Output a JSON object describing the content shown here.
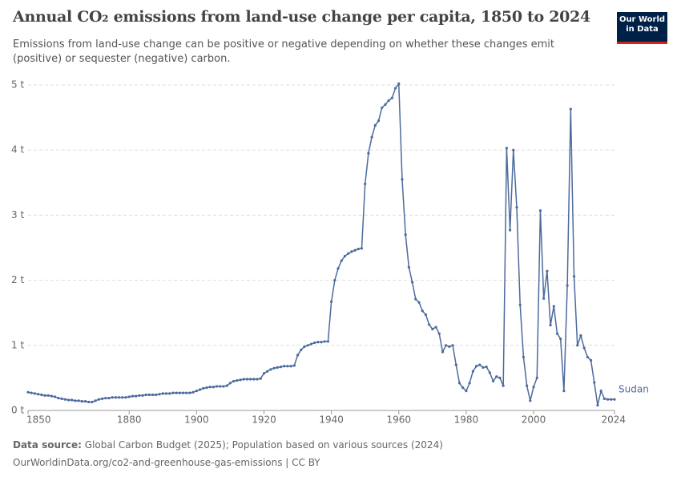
{
  "chart_data": {
    "type": "line",
    "title": "Annual CO₂ emissions from land-use change per capita, 1850 to 2024",
    "subtitle": "Emissions from land-use change can be positive or negative depending on whether these changes emit (positive) or sequester (negative) carbon.",
    "logo": "Our World in Data",
    "source_label": "Data source:",
    "source_text": "Global Carbon Budget (2025); Population based on various sources (2024)",
    "footer": "OurWorldinData.org/co2-and-greenhouse-gas-emissions | CC BY",
    "grid": true,
    "xlim": [
      1850,
      2024
    ],
    "xticks": [
      1850,
      1880,
      1900,
      1920,
      1940,
      1960,
      1980,
      2000,
      2024
    ],
    "ylim": [
      0,
      5
    ],
    "yticks": [
      {
        "value": 0,
        "label": "0 t"
      },
      {
        "value": 1,
        "label": "1 t"
      },
      {
        "value": 2,
        "label": "2 t"
      },
      {
        "value": 3,
        "label": "3 t"
      },
      {
        "value": 4,
        "label": "4 t"
      },
      {
        "value": 5,
        "label": "5 t"
      }
    ],
    "x": [
      1850,
      1851,
      1852,
      1853,
      1854,
      1855,
      1856,
      1857,
      1858,
      1859,
      1860,
      1861,
      1862,
      1863,
      1864,
      1865,
      1866,
      1867,
      1868,
      1869,
      1870,
      1871,
      1872,
      1873,
      1874,
      1875,
      1876,
      1877,
      1878,
      1879,
      1880,
      1881,
      1882,
      1883,
      1884,
      1885,
      1886,
      1887,
      1888,
      1889,
      1890,
      1891,
      1892,
      1893,
      1894,
      1895,
      1896,
      1897,
      1898,
      1899,
      1900,
      1901,
      1902,
      1903,
      1904,
      1905,
      1906,
      1907,
      1908,
      1909,
      1910,
      1911,
      1912,
      1913,
      1914,
      1915,
      1916,
      1917,
      1918,
      1919,
      1920,
      1921,
      1922,
      1923,
      1924,
      1925,
      1926,
      1927,
      1928,
      1929,
      1930,
      1931,
      1932,
      1933,
      1934,
      1935,
      1936,
      1937,
      1938,
      1939,
      1940,
      1941,
      1942,
      1943,
      1944,
      1945,
      1946,
      1947,
      1948,
      1949,
      1950,
      1951,
      1952,
      1953,
      1954,
      1955,
      1956,
      1957,
      1958,
      1959,
      1960,
      1961,
      1962,
      1963,
      1964,
      1965,
      1966,
      1967,
      1968,
      1969,
      1970,
      1971,
      1972,
      1973,
      1974,
      1975,
      1976,
      1977,
      1978,
      1979,
      1980,
      1981,
      1982,
      1983,
      1984,
      1985,
      1986,
      1987,
      1988,
      1989,
      1990,
      1991,
      1992,
      1993,
      1994,
      1995,
      1996,
      1997,
      1998,
      1999,
      2000,
      2001,
      2002,
      2003,
      2004,
      2005,
      2006,
      2007,
      2008,
      2009,
      2010,
      2011,
      2012,
      2013,
      2014,
      2015,
      2016,
      2017,
      2018,
      2019,
      2020,
      2021,
      2022,
      2023,
      2024
    ],
    "series": [
      {
        "name": "Sudan",
        "color": "#4c6a9c",
        "values": [
          0.28,
          0.27,
          0.26,
          0.25,
          0.24,
          0.23,
          0.23,
          0.22,
          0.21,
          0.19,
          0.18,
          0.17,
          0.16,
          0.16,
          0.15,
          0.15,
          0.14,
          0.14,
          0.13,
          0.13,
          0.15,
          0.17,
          0.18,
          0.19,
          0.19,
          0.2,
          0.2,
          0.2,
          0.2,
          0.2,
          0.21,
          0.22,
          0.22,
          0.23,
          0.23,
          0.24,
          0.24,
          0.24,
          0.24,
          0.25,
          0.26,
          0.26,
          0.26,
          0.27,
          0.27,
          0.27,
          0.27,
          0.27,
          0.27,
          0.28,
          0.3,
          0.32,
          0.34,
          0.35,
          0.36,
          0.36,
          0.37,
          0.37,
          0.37,
          0.38,
          0.42,
          0.45,
          0.46,
          0.47,
          0.48,
          0.48,
          0.48,
          0.48,
          0.48,
          0.49,
          0.57,
          0.6,
          0.63,
          0.65,
          0.66,
          0.67,
          0.68,
          0.68,
          0.68,
          0.69,
          0.85,
          0.93,
          0.98,
          1.0,
          1.02,
          1.04,
          1.05,
          1.05,
          1.06,
          1.06,
          1.67,
          2.0,
          2.18,
          2.3,
          2.37,
          2.41,
          2.44,
          2.46,
          2.48,
          2.49,
          3.48,
          3.95,
          4.2,
          4.38,
          4.45,
          4.65,
          4.7,
          4.76,
          4.8,
          4.95,
          5.02,
          3.55,
          2.7,
          2.2,
          1.97,
          1.71,
          1.66,
          1.53,
          1.47,
          1.32,
          1.25,
          1.28,
          1.18,
          0.9,
          1.0,
          0.98,
          1.0,
          0.7,
          0.42,
          0.35,
          0.3,
          0.42,
          0.6,
          0.68,
          0.7,
          0.66,
          0.67,
          0.58,
          0.45,
          0.52,
          0.5,
          0.38,
          4.03,
          2.77,
          4.0,
          3.12,
          1.62,
          0.82,
          0.38,
          0.15,
          0.36,
          0.5,
          3.07,
          1.72,
          2.14,
          1.31,
          1.6,
          1.18,
          1.1,
          0.3,
          1.92,
          4.63,
          2.06,
          1.0,
          1.15,
          0.96,
          0.82,
          0.77,
          0.43,
          0.08,
          0.3,
          0.18,
          0.17,
          0.17,
          0.17
        ]
      }
    ]
  }
}
